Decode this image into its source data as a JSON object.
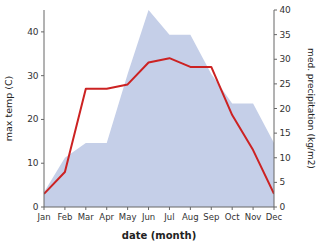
{
  "chart_data": {
    "type": "line",
    "xlabel": "date (month)",
    "ylabel": "max temp (C)",
    "y2label": "med. precipitation (kg/m2)",
    "categories": [
      "Jan",
      "Feb",
      "Mar",
      "Apr",
      "May",
      "Jun",
      "Jul",
      "Aug",
      "Sep",
      "Oct",
      "Nov",
      "Dec"
    ],
    "series": [
      {
        "type": "area",
        "axis": "y2",
        "color": "#c5cfe8",
        "values": [
          3,
          10,
          13,
          13,
          27,
          40,
          35,
          35,
          27,
          21,
          21,
          13
        ]
      },
      {
        "type": "line",
        "color": "#cc2222",
        "values": [
          3,
          8,
          27,
          27,
          28,
          33,
          34,
          32,
          32,
          21,
          13,
          3
        ]
      }
    ],
    "ylim": [
      0,
      45
    ],
    "yticks": [
      0,
      10,
      20,
      30,
      40
    ],
    "y2lim": [
      0,
      40
    ],
    "y2ticks": [
      0,
      5,
      10,
      15,
      20,
      25,
      30,
      35,
      40
    ],
    "grid": false
  }
}
